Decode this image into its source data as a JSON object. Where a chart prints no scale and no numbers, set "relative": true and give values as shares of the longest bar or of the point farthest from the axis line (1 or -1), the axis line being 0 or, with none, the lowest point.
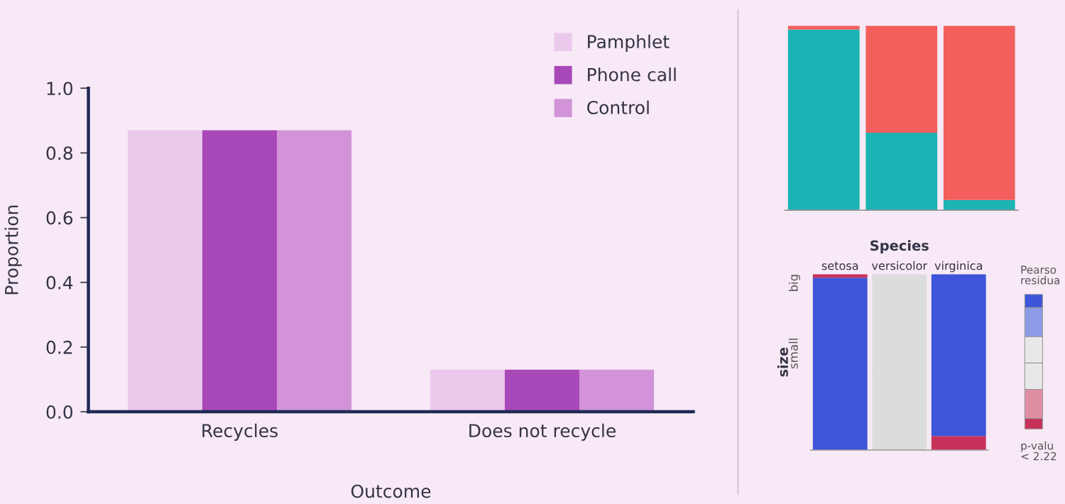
{
  "chart_data": [
    {
      "type": "bar",
      "xlabel": "Outcome",
      "ylabel": "Proportion",
      "categories": [
        "Recycles",
        "Does not recycle"
      ],
      "series": [
        {
          "name": "Pamphlet",
          "color": "#ebc9ec",
          "values": [
            0.87,
            0.13
          ]
        },
        {
          "name": "Phone call",
          "color": "#a949b9",
          "values": [
            0.87,
            0.13
          ]
        },
        {
          "name": "Control",
          "color": "#d293d8",
          "values": [
            0.87,
            0.13
          ]
        }
      ],
      "ylim": [
        0,
        1
      ],
      "yticks": [
        {
          "value": 0,
          "label": "0.0"
        },
        0.2,
        0.4,
        0.6,
        0.8,
        {
          "value": 1,
          "label": "1.0"
        }
      ],
      "grid": false,
      "legend": "top right"
    },
    {
      "type": "bar",
      "stacked": true,
      "relative": true,
      "categories": [
        null,
        null,
        null
      ],
      "tick_labels": false,
      "series": [
        {
          "color": "#1bb3b3",
          "values": [
            0.98,
            0.42,
            0.055
          ]
        },
        {
          "color": "#f25f5c",
          "values": [
            0.02,
            0.58,
            0.945
          ]
        }
      ]
    },
    {
      "type": "bar",
      "stacked": true,
      "relative": true,
      "title": "Species",
      "ylabel": "size",
      "categories": [
        "setosa",
        "versicolor",
        "virginica"
      ],
      "tick_labels": "x",
      "series": [
        {
          "colors": [
            "#3d55d8",
            "#dcdcdc",
            "#c8325a"
          ],
          "values": [
            0.98,
            0.43,
            0.08
          ]
        },
        {
          "colors": [
            "#c8325a",
            "#dcdcdc",
            "#3d55d8"
          ],
          "values": [
            0.02,
            0.57,
            0.92
          ]
        }
      ],
      "annotations": [
        "big",
        "small",
        "Pearso",
        "residua",
        "p-valu",
        "< 2.22"
      ]
    }
  ]
}
